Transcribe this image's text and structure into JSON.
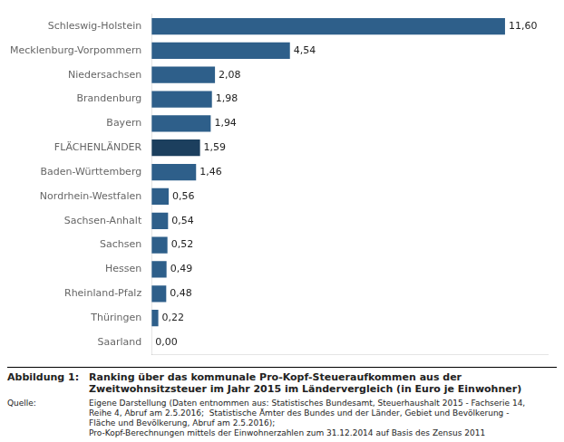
{
  "chart_data": {
    "type": "bar",
    "orientation": "horizontal",
    "categories": [
      "Schleswig-Holstein",
      "Mecklenburg-Vorpommern",
      "Niedersachsen",
      "Brandenburg",
      "Bayern",
      "FLÄCHENLÄNDER",
      "Baden-Württemberg",
      "Nordrhein-Westfalen",
      "Sachsen-Anhalt",
      "Sachsen",
      "Hessen",
      "Rheinland-Pfalz",
      "Thüringen",
      "Saarland"
    ],
    "values": [
      11.6,
      4.54,
      2.08,
      1.98,
      1.94,
      1.59,
      1.46,
      0.56,
      0.54,
      0.52,
      0.49,
      0.48,
      0.22,
      0.0
    ],
    "value_labels": [
      "11,60",
      "4,54",
      "2,08",
      "1,98",
      "1,94",
      "1,59",
      "1,46",
      "0,56",
      "0,54",
      "0,52",
      "0,49",
      "0,48",
      "0,22",
      "0,00"
    ],
    "data_labels": true,
    "colors": [
      "#2E5F8A",
      "#2E5F8A",
      "#2E5F8A",
      "#2E5F8A",
      "#2E5F8A",
      "#1C3F5E",
      "#2E5F8A",
      "#2E5F8A",
      "#2E5F8A",
      "#2E5F8A",
      "#2E5F8A",
      "#2E5F8A",
      "#2E5F8A",
      "#2E5F8A"
    ],
    "xlim": [
      0,
      13
    ],
    "tick_labels": "y",
    "grid": false,
    "annotations": [
      "Abbildung 1:",
      "Ranking über das kommunale Pro-Kopf-Steueraufkommen aus der\nZweitwohnsitzsteuer im Jahr 2015 im Ländervergleich (in Euro je Einwohner)",
      "Quelle:",
      "Eigene Darstellung (Daten entnommen aus: Statistisches Bundesamt, Steuerhaushalt 2015 - Fachserie 14,\nReihe 4, Abruf am 2.5.2016;  Statistische Ämter des Bundes und der Länder, Gebiet und Bevölkerung -\nFläche und Bevölkerung, Abruf am 2.5.2016);\nPro-Kopf-Berechnungen mittels der Einwohnerzahlen zum 31.12.2014 auf Basis des Zensus 2011"
    ]
  }
}
